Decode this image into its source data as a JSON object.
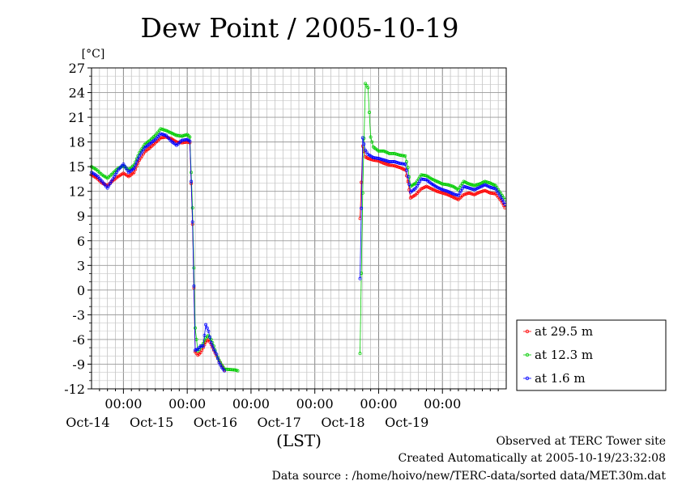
{
  "chart_data": {
    "type": "line",
    "title": "Dew Point / 2005-10-19",
    "ylabel": "[°C]",
    "xlabel": "(LST)",
    "ylim": [
      -12,
      27
    ],
    "yticks": [
      -12,
      -9,
      -6,
      -3,
      0,
      3,
      6,
      9,
      12,
      15,
      18,
      21,
      24,
      27
    ],
    "xlim": [
      "2005-10-13 12:00",
      "2005-10-20 00:00"
    ],
    "time_tick_labels": [
      "00:00",
      "00:00",
      "00:00",
      "00:00",
      "00:00",
      "00:00"
    ],
    "day_labels": [
      "Oct-14",
      "Oct-15",
      "Oct-16",
      "Oct-17",
      "Oct-18",
      "Oct-19"
    ],
    "grid": true,
    "legend_position": "right",
    "series": [
      {
        "name": "at 29.5 m",
        "color": "#ff0000",
        "points": [
          [
            "2005-10-13 12:00",
            14.0
          ],
          [
            "2005-10-13 14:00",
            13.6
          ],
          [
            "2005-10-13 16:00",
            13.0
          ],
          [
            "2005-10-13 18:00",
            12.7
          ],
          [
            "2005-10-13 20:00",
            13.3
          ],
          [
            "2005-10-13 22:00",
            13.8
          ],
          [
            "2005-10-14 00:00",
            14.2
          ],
          [
            "2005-10-14 02:00",
            13.8
          ],
          [
            "2005-10-14 04:00",
            14.3
          ],
          [
            "2005-10-14 06:00",
            15.8
          ],
          [
            "2005-10-14 08:00",
            16.8
          ],
          [
            "2005-10-14 10:00",
            17.3
          ],
          [
            "2005-10-14 12:00",
            17.9
          ],
          [
            "2005-10-14 14:00",
            18.5
          ],
          [
            "2005-10-14 16:00",
            18.6
          ],
          [
            "2005-10-14 18:00",
            18.4
          ],
          [
            "2005-10-14 20:00",
            18.0
          ],
          [
            "2005-10-14 22:00",
            17.9
          ],
          [
            "2005-10-15 00:00",
            18.0
          ],
          [
            "2005-10-15 01:00",
            17.9
          ],
          [
            "2005-10-15 02:00",
            8.0
          ],
          [
            "2005-10-15 03:00",
            -7.5
          ],
          [
            "2005-10-15 04:00",
            -7.9
          ],
          [
            "2005-10-15 05:00",
            -7.6
          ],
          [
            "2005-10-15 06:00",
            -7.0
          ],
          [
            "2005-10-15 07:00",
            -6.3
          ],
          [
            "2005-10-15 08:00",
            -6.0
          ],
          [
            "2005-10-15 09:00",
            -6.6
          ],
          [
            "2005-10-15 10:00",
            -7.3
          ],
          [
            "2005-10-15 11:00",
            -8.0
          ],
          [
            "2005-10-15 12:00",
            -8.6
          ],
          [
            "2005-10-15 13:00",
            -9.2
          ],
          [
            "2005-10-15 14:00",
            -9.7
          ],
          [
            "2005-10-17 17:00",
            8.7
          ],
          [
            "2005-10-17 18:00",
            17.5
          ],
          [
            "2005-10-17 19:00",
            16.2
          ],
          [
            "2005-10-17 20:00",
            16.0
          ],
          [
            "2005-10-17 22:00",
            15.8
          ],
          [
            "2005-10-18 00:00",
            15.7
          ],
          [
            "2005-10-18 02:00",
            15.4
          ],
          [
            "2005-10-18 04:00",
            15.2
          ],
          [
            "2005-10-18 06:00",
            15.1
          ],
          [
            "2005-10-18 08:00",
            14.9
          ],
          [
            "2005-10-18 10:00",
            14.6
          ],
          [
            "2005-10-18 11:00",
            13.2
          ],
          [
            "2005-10-18 12:00",
            11.2
          ],
          [
            "2005-10-18 14:00",
            11.6
          ],
          [
            "2005-10-18 16:00",
            12.3
          ],
          [
            "2005-10-18 18:00",
            12.6
          ],
          [
            "2005-10-18 20:00",
            12.3
          ],
          [
            "2005-10-18 22:00",
            12.0
          ],
          [
            "2005-10-19 00:00",
            11.8
          ],
          [
            "2005-10-19 02:00",
            11.6
          ],
          [
            "2005-10-19 04:00",
            11.3
          ],
          [
            "2005-10-19 06:00",
            11.0
          ],
          [
            "2005-10-19 08:00",
            11.6
          ],
          [
            "2005-10-19 10:00",
            11.8
          ],
          [
            "2005-10-19 12:00",
            11.6
          ],
          [
            "2005-10-19 14:00",
            11.9
          ],
          [
            "2005-10-19 16:00",
            12.1
          ],
          [
            "2005-10-19 18:00",
            11.8
          ],
          [
            "2005-10-19 20:00",
            11.7
          ],
          [
            "2005-10-19 22:00",
            10.9
          ],
          [
            "2005-10-19 23:30",
            10.0
          ]
        ]
      },
      {
        "name": "at 12.3 m",
        "color": "#00cc00",
        "points": [
          [
            "2005-10-13 12:00",
            15.0
          ],
          [
            "2005-10-13 14:00",
            14.6
          ],
          [
            "2005-10-13 16:00",
            14.0
          ],
          [
            "2005-10-13 18:00",
            13.6
          ],
          [
            "2005-10-13 20:00",
            14.2
          ],
          [
            "2005-10-13 22:00",
            14.8
          ],
          [
            "2005-10-14 00:00",
            15.1
          ],
          [
            "2005-10-14 02:00",
            14.6
          ],
          [
            "2005-10-14 04:00",
            15.2
          ],
          [
            "2005-10-14 06:00",
            16.7
          ],
          [
            "2005-10-14 08:00",
            17.7
          ],
          [
            "2005-10-14 10:00",
            18.2
          ],
          [
            "2005-10-14 12:00",
            18.8
          ],
          [
            "2005-10-14 14:00",
            19.6
          ],
          [
            "2005-10-14 16:00",
            19.4
          ],
          [
            "2005-10-14 18:00",
            19.1
          ],
          [
            "2005-10-14 20:00",
            18.8
          ],
          [
            "2005-10-14 22:00",
            18.7
          ],
          [
            "2005-10-15 00:00",
            18.9
          ],
          [
            "2005-10-15 01:00",
            18.6
          ],
          [
            "2005-10-15 02:00",
            10.0
          ],
          [
            "2005-10-15 03:00",
            -4.6
          ],
          [
            "2005-10-15 04:00",
            -7.4
          ],
          [
            "2005-10-15 05:00",
            -7.0
          ],
          [
            "2005-10-15 06:00",
            -6.5
          ],
          [
            "2005-10-15 07:00",
            -5.8
          ],
          [
            "2005-10-15 08:00",
            -5.5
          ],
          [
            "2005-10-15 09:00",
            -6.0
          ],
          [
            "2005-10-15 10:00",
            -6.8
          ],
          [
            "2005-10-15 11:00",
            -7.8
          ],
          [
            "2005-10-15 12:00",
            -8.5
          ],
          [
            "2005-10-15 13:00",
            -9.1
          ],
          [
            "2005-10-15 14:00",
            -9.6
          ],
          [
            "2005-10-15 18:00",
            -9.7
          ],
          [
            "2005-10-15 19:00",
            -9.8
          ],
          [
            "2005-10-17 17:00",
            -7.7
          ],
          [
            "2005-10-17 18:00",
            11.8
          ],
          [
            "2005-10-17 19:00",
            25.1
          ],
          [
            "2005-10-17 20:00",
            24.6
          ],
          [
            "2005-10-17 21:00",
            18.6
          ],
          [
            "2005-10-17 22:00",
            17.4
          ],
          [
            "2005-10-18 00:00",
            16.9
          ],
          [
            "2005-10-18 02:00",
            16.9
          ],
          [
            "2005-10-18 04:00",
            16.6
          ],
          [
            "2005-10-18 06:00",
            16.6
          ],
          [
            "2005-10-18 08:00",
            16.4
          ],
          [
            "2005-10-18 10:00",
            16.3
          ],
          [
            "2005-10-18 11:00",
            14.9
          ],
          [
            "2005-10-18 12:00",
            12.6
          ],
          [
            "2005-10-18 14:00",
            13.0
          ],
          [
            "2005-10-18 16:00",
            14.0
          ],
          [
            "2005-10-18 18:00",
            13.9
          ],
          [
            "2005-10-18 20:00",
            13.5
          ],
          [
            "2005-10-18 22:00",
            13.2
          ],
          [
            "2005-10-19 00:00",
            12.9
          ],
          [
            "2005-10-19 02:00",
            12.8
          ],
          [
            "2005-10-19 04:00",
            12.6
          ],
          [
            "2005-10-19 06:00",
            12.2
          ],
          [
            "2005-10-19 08:00",
            13.2
          ],
          [
            "2005-10-19 10:00",
            12.9
          ],
          [
            "2005-10-19 12:00",
            12.7
          ],
          [
            "2005-10-19 14:00",
            12.9
          ],
          [
            "2005-10-19 16:00",
            13.2
          ],
          [
            "2005-10-19 18:00",
            13.0
          ],
          [
            "2005-10-19 20:00",
            12.7
          ],
          [
            "2005-10-19 22:00",
            11.7
          ],
          [
            "2005-10-19 23:30",
            11.0
          ]
        ]
      },
      {
        "name": "at 1.6 m",
        "color": "#0000ff",
        "points": [
          [
            "2005-10-13 12:00",
            14.3
          ],
          [
            "2005-10-13 14:00",
            13.9
          ],
          [
            "2005-10-13 16:00",
            13.2
          ],
          [
            "2005-10-13 18:00",
            12.4
          ],
          [
            "2005-10-13 20:00",
            13.5
          ],
          [
            "2005-10-13 22:00",
            14.6
          ],
          [
            "2005-10-14 00:00",
            15.3
          ],
          [
            "2005-10-14 02:00",
            14.3
          ],
          [
            "2005-10-14 04:00",
            14.8
          ],
          [
            "2005-10-14 06:00",
            16.3
          ],
          [
            "2005-10-14 08:00",
            17.3
          ],
          [
            "2005-10-14 10:00",
            17.8
          ],
          [
            "2005-10-14 12:00",
            18.3
          ],
          [
            "2005-10-14 14:00",
            19.0
          ],
          [
            "2005-10-14 16:00",
            18.8
          ],
          [
            "2005-10-14 18:00",
            18.1
          ],
          [
            "2005-10-14 20:00",
            17.6
          ],
          [
            "2005-10-14 22:00",
            18.2
          ],
          [
            "2005-10-15 00:00",
            18.3
          ],
          [
            "2005-10-15 01:00",
            18.1
          ],
          [
            "2005-10-15 02:00",
            8.3
          ],
          [
            "2005-10-15 03:00",
            -7.3
          ],
          [
            "2005-10-15 04:00",
            -7.2
          ],
          [
            "2005-10-15 05:00",
            -6.8
          ],
          [
            "2005-10-15 06:00",
            -6.8
          ],
          [
            "2005-10-15 07:00",
            -4.2
          ],
          [
            "2005-10-15 08:00",
            -5.0
          ],
          [
            "2005-10-15 09:00",
            -6.4
          ],
          [
            "2005-10-15 10:00",
            -7.2
          ],
          [
            "2005-10-15 11:00",
            -7.8
          ],
          [
            "2005-10-15 12:00",
            -8.8
          ],
          [
            "2005-10-15 13:00",
            -9.4
          ],
          [
            "2005-10-15 14:00",
            -9.8
          ],
          [
            "2005-10-17 17:00",
            1.4
          ],
          [
            "2005-10-17 18:00",
            18.5
          ],
          [
            "2005-10-17 19:00",
            17.0
          ],
          [
            "2005-10-17 20:00",
            16.5
          ],
          [
            "2005-10-17 22:00",
            16.1
          ],
          [
            "2005-10-18 00:00",
            16.0
          ],
          [
            "2005-10-18 02:00",
            15.8
          ],
          [
            "2005-10-18 04:00",
            15.6
          ],
          [
            "2005-10-18 06:00",
            15.6
          ],
          [
            "2005-10-18 08:00",
            15.4
          ],
          [
            "2005-10-18 10:00",
            15.3
          ],
          [
            "2005-10-18 11:00",
            13.8
          ],
          [
            "2005-10-18 12:00",
            11.9
          ],
          [
            "2005-10-18 14:00",
            12.4
          ],
          [
            "2005-10-18 16:00",
            13.5
          ],
          [
            "2005-10-18 18:00",
            13.4
          ],
          [
            "2005-10-18 20:00",
            12.9
          ],
          [
            "2005-10-18 22:00",
            12.5
          ],
          [
            "2005-10-19 00:00",
            12.2
          ],
          [
            "2005-10-19 02:00",
            12.0
          ],
          [
            "2005-10-19 04:00",
            11.7
          ],
          [
            "2005-10-19 06:00",
            11.5
          ],
          [
            "2005-10-19 08:00",
            12.6
          ],
          [
            "2005-10-19 10:00",
            12.4
          ],
          [
            "2005-10-19 12:00",
            12.2
          ],
          [
            "2005-10-19 14:00",
            12.5
          ],
          [
            "2005-10-19 16:00",
            12.8
          ],
          [
            "2005-10-19 18:00",
            12.5
          ],
          [
            "2005-10-19 20:00",
            12.3
          ],
          [
            "2005-10-19 22:00",
            11.3
          ],
          [
            "2005-10-19 23:30",
            10.4
          ]
        ]
      }
    ]
  },
  "footer": {
    "observed": "Observed at TERC Tower site",
    "created": "Created Automatically at 2005-10-19/23:32:08",
    "source": "Data source : /home/hoivo/new/TERC-data/sorted  data/MET.30m.dat"
  }
}
